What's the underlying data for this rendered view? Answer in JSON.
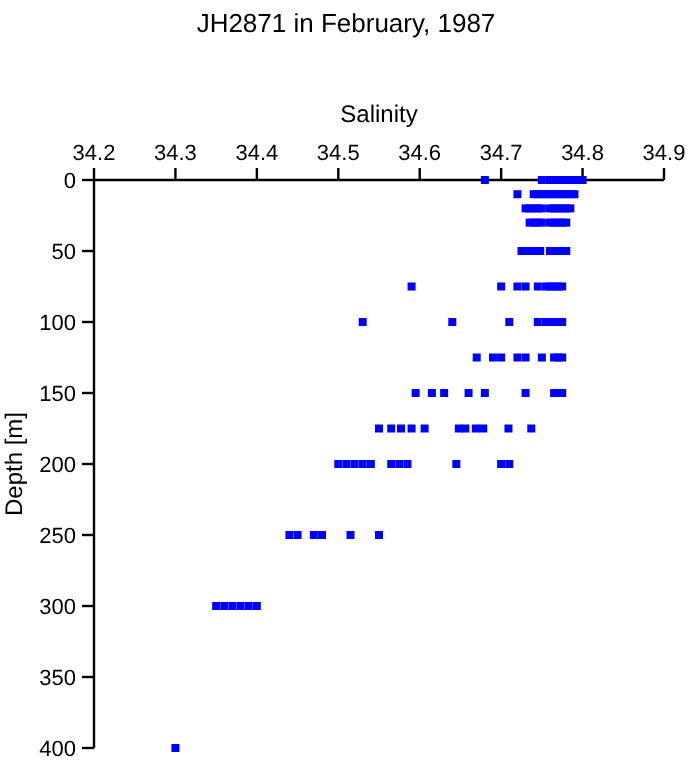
{
  "chart_data": {
    "type": "scatter",
    "title": "JH2871 in February, 1987",
    "xlabel": "Salinity",
    "ylabel": "Depth [m]",
    "marker": "square",
    "grid": false,
    "x": [
      34.68,
      34.75,
      34.76,
      34.765,
      34.77,
      34.775,
      34.78,
      34.785,
      34.79,
      34.795,
      34.8,
      34.72,
      34.74,
      34.745,
      34.75,
      34.755,
      34.76,
      34.765,
      34.77,
      34.775,
      34.78,
      34.785,
      34.79,
      34.73,
      34.735,
      34.74,
      34.745,
      34.75,
      34.76,
      34.765,
      34.77,
      34.775,
      34.78,
      34.785,
      34.735,
      34.74,
      34.745,
      34.75,
      34.76,
      34.765,
      34.77,
      34.775,
      34.78,
      34.725,
      34.73,
      34.735,
      34.74,
      34.748,
      34.76,
      34.765,
      34.77,
      34.775,
      34.78,
      34.59,
      34.7,
      34.72,
      34.73,
      34.745,
      34.755,
      34.76,
      34.765,
      34.77,
      34.775,
      34.53,
      34.64,
      34.71,
      34.745,
      34.755,
      34.76,
      34.765,
      34.77,
      34.775,
      34.67,
      34.69,
      34.7,
      34.72,
      34.73,
      34.75,
      34.765,
      34.77,
      34.775,
      34.595,
      34.615,
      34.63,
      34.66,
      34.68,
      34.73,
      34.765,
      34.77,
      34.775,
      34.55,
      34.565,
      34.577,
      34.59,
      34.606,
      34.648,
      34.656,
      34.669,
      34.678,
      34.709,
      34.737,
      34.5,
      34.51,
      34.52,
      34.53,
      34.54,
      34.565,
      34.575,
      34.585,
      34.645,
      34.7,
      34.71,
      34.44,
      34.45,
      34.47,
      34.48,
      34.515,
      34.55,
      34.35,
      34.36,
      34.37,
      34.38,
      34.39,
      34.4,
      34.3
    ],
    "values": [
      0,
      0,
      0,
      0,
      0,
      0,
      0,
      0,
      0,
      0,
      0,
      10,
      10,
      10,
      10,
      10,
      10,
      10,
      10,
      10,
      10,
      10,
      10,
      20,
      20,
      20,
      20,
      20,
      20,
      20,
      20,
      20,
      20,
      20,
      30,
      30,
      30,
      30,
      30,
      30,
      30,
      30,
      30,
      50,
      50,
      50,
      50,
      50,
      50,
      50,
      50,
      50,
      50,
      75,
      75,
      75,
      75,
      75,
      75,
      75,
      75,
      75,
      75,
      100,
      100,
      100,
      100,
      100,
      100,
      100,
      100,
      100,
      125,
      125,
      125,
      125,
      125,
      125,
      125,
      125,
      125,
      150,
      150,
      150,
      150,
      150,
      150,
      150,
      150,
      150,
      175,
      175,
      175,
      175,
      175,
      175,
      175,
      175,
      175,
      175,
      175,
      200,
      200,
      200,
      200,
      200,
      200,
      200,
      200,
      200,
      200,
      200,
      250,
      250,
      250,
      250,
      250,
      250,
      300,
      300,
      300,
      300,
      300,
      300,
      400
    ],
    "color": "#0000ff",
    "xlim": [
      34.2,
      34.9
    ],
    "xticks": [
      34.2,
      34.3,
      34.4,
      34.5,
      34.6,
      34.7,
      34.8,
      34.9
    ],
    "ylim": [
      400,
      0
    ],
    "yticks": [
      0,
      50,
      100,
      150,
      200,
      250,
      300,
      350,
      400
    ]
  }
}
